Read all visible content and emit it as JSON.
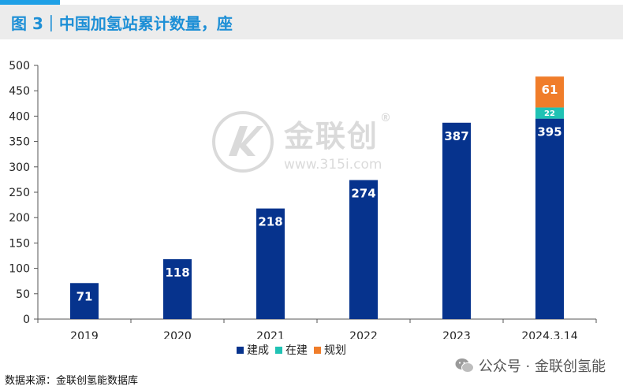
{
  "title": "图 3｜中国加氢站累计数量，座",
  "source": "数据来源：金联创氢能数据库",
  "watermark": {
    "name": "金联创",
    "url": "www.315i.com",
    "reg": "®",
    "icon": "jinlianchuang-logo-icon"
  },
  "wechat": {
    "label": "公众号 · 金联创氢能",
    "icon": "wechat-icon"
  },
  "colors": {
    "title": "#1d8fd6",
    "accent": "#1fa0e6",
    "built": "#06338d",
    "building": "#20c2b4",
    "planned": "#f07d2a"
  },
  "chart_data": {
    "type": "bar",
    "stacked": true,
    "categories": [
      "2019",
      "2020",
      "2021",
      "2022",
      "2023",
      "2024.3.14"
    ],
    "series": [
      {
        "name": "建成",
        "color": "#06338d",
        "values": [
          71,
          118,
          218,
          274,
          387,
          395
        ]
      },
      {
        "name": "在建",
        "color": "#20c2b4",
        "values": [
          0,
          0,
          0,
          0,
          0,
          22
        ]
      },
      {
        "name": "规划",
        "color": "#f07d2a",
        "values": [
          0,
          0,
          0,
          0,
          0,
          61
        ]
      }
    ],
    "ylim": [
      0,
      500
    ],
    "yticks": [
      0,
      50,
      100,
      150,
      200,
      250,
      300,
      350,
      400,
      450,
      500
    ],
    "grid": false,
    "legend_position": "bottom"
  }
}
